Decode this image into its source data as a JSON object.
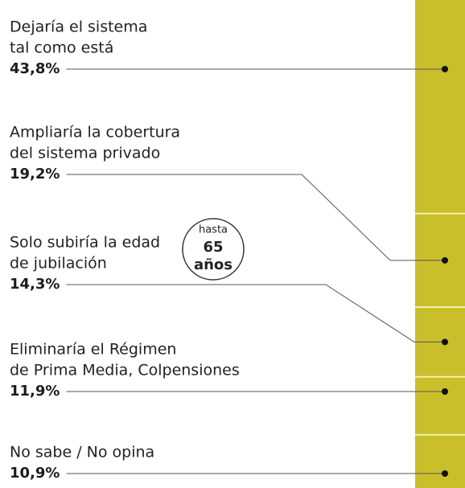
{
  "chart_data": {
    "type": "stacked-bar",
    "categories": [
      [
        "Dejaría el sistema",
        "tal como está"
      ],
      [
        "Ampliaría la cobertura",
        "del sistema privado"
      ],
      [
        "Solo subiría la edad",
        "de jubilación"
      ],
      [
        "Eliminaría el Régimen",
        "de Prima Media, Colpensiones"
      ],
      [
        "No sabe / No opina"
      ]
    ],
    "values": [
      43.8,
      19.2,
      14.3,
      11.9,
      10.9
    ],
    "value_labels": [
      "43,8%",
      "19,2%",
      "14,3%",
      "11,9%",
      "10,9%"
    ],
    "color": "#c9bf2b",
    "annotation": [
      "hasta",
      "65",
      "años"
    ]
  }
}
